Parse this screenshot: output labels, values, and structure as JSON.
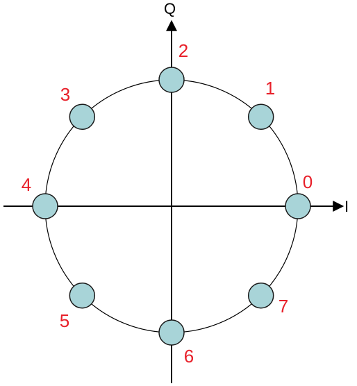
{
  "axes": {
    "x_label": "I",
    "y_label": "Q"
  },
  "constellation": {
    "point_fill": "#a8d4d8",
    "label_color": "#e8202a",
    "points": [
      {
        "label": "0",
        "angle_deg": 0
      },
      {
        "label": "1",
        "angle_deg": 45
      },
      {
        "label": "2",
        "angle_deg": 90
      },
      {
        "label": "3",
        "angle_deg": 135
      },
      {
        "label": "4",
        "angle_deg": 180
      },
      {
        "label": "5",
        "angle_deg": 225
      },
      {
        "label": "6",
        "angle_deg": 270
      },
      {
        "label": "7",
        "angle_deg": 315
      }
    ]
  }
}
